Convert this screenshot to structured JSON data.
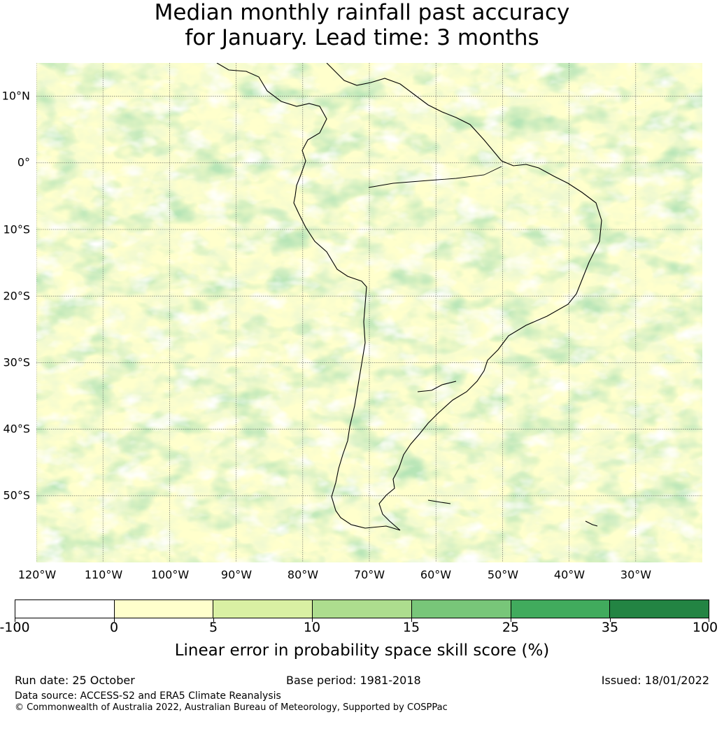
{
  "title": {
    "line1": "Median monthly rainfall past accuracy",
    "line2": "for January. Lead time: 3 months"
  },
  "map": {
    "longitude_labels": [
      "120°W",
      "110°W",
      "100°W",
      "90°W",
      "80°W",
      "70°W",
      "60°W",
      "50°W",
      "40°W",
      "30°W"
    ],
    "latitude_labels": [
      "10°N",
      "0°",
      "10°S",
      "20°S",
      "30°S",
      "40°S",
      "50°S"
    ],
    "extent": {
      "lon_min": -120,
      "lon_max": -20,
      "lat_min": -60,
      "lat_max": 15
    },
    "land_outline": "South America"
  },
  "colorbar": {
    "ticks": [
      "-100",
      "0",
      "5",
      "10",
      "15",
      "25",
      "35",
      "100"
    ],
    "colors": [
      "#ffffff",
      "#ffffcc",
      "#d9f0a3",
      "#addd8e",
      "#78c679",
      "#41ab5d",
      "#238443"
    ],
    "label": "Linear error in probability space skill score (%)"
  },
  "footer": {
    "run_date": "Run date: 25 October",
    "base_period": "Base period: 1981-2018",
    "issued": "Issued: 18/01/2022",
    "data_source": "Data source: ACCESS-S2 and ERA5 Climate Reanalysis",
    "copyright": "© Commonwealth of Australia 2022, Australian Bureau of Meteorology, Supported by COSPPac"
  }
}
